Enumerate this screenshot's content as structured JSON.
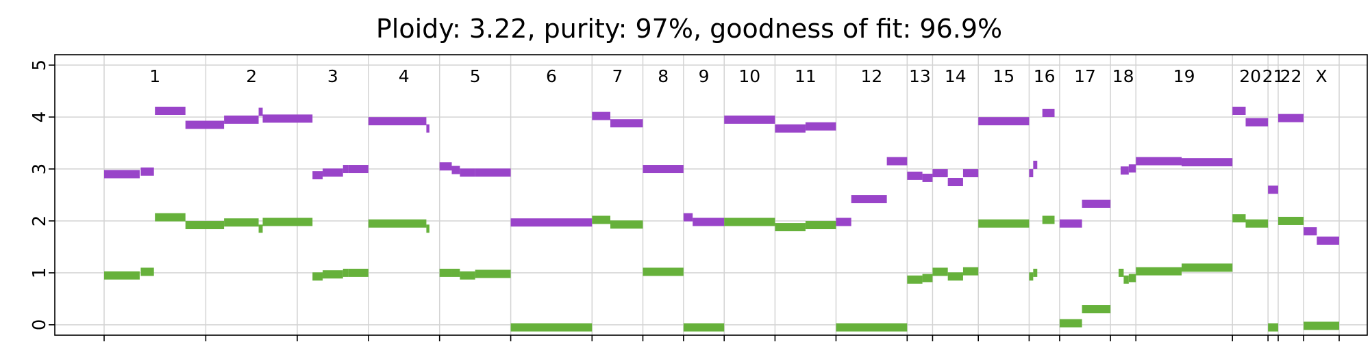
{
  "chart_data": {
    "type": "scatter",
    "title": "Ploidy: 3.22, purity: 97%, goodness of fit: 96.9%",
    "xlabel": "",
    "ylabel": "",
    "ylim": [
      -0.2,
      5.2
    ],
    "yticks": [
      0,
      1,
      2,
      3,
      4,
      5
    ],
    "grid": true,
    "colors": {
      "major": "#9944c9",
      "minor": "#66b13b"
    },
    "chromosomes": [
      {
        "name": "1",
        "start": 0,
        "end": 10
      },
      {
        "name": "2",
        "start": 10,
        "end": 19
      },
      {
        "name": "3",
        "start": 19,
        "end": 26
      },
      {
        "name": "4",
        "start": 26,
        "end": 33
      },
      {
        "name": "5",
        "start": 33,
        "end": 40
      },
      {
        "name": "6",
        "start": 40,
        "end": 48
      },
      {
        "name": "7",
        "start": 48,
        "end": 53
      },
      {
        "name": "8",
        "start": 53,
        "end": 57
      },
      {
        "name": "9",
        "start": 57,
        "end": 61
      },
      {
        "name": "10",
        "start": 61,
        "end": 66
      },
      {
        "name": "11",
        "start": 66,
        "end": 72
      },
      {
        "name": "12",
        "start": 72,
        "end": 79
      },
      {
        "name": "13",
        "start": 79,
        "end": 81.5
      },
      {
        "name": "14",
        "start": 81.5,
        "end": 86
      },
      {
        "name": "15",
        "start": 86,
        "end": 91
      },
      {
        "name": "16",
        "start": 91,
        "end": 94
      },
      {
        "name": "17",
        "start": 94,
        "end": 99
      },
      {
        "name": "18",
        "start": 99,
        "end": 101.5
      },
      {
        "name": "19",
        "start": 101.5,
        "end": 111
      },
      {
        "name": "20",
        "start": 111,
        "end": 114.5
      },
      {
        "name": "21",
        "start": 114.5,
        "end": 115.5
      },
      {
        "name": "22",
        "start": 115.5,
        "end": 118
      },
      {
        "name": "X",
        "start": 118,
        "end": 121.5
      }
    ],
    "series": [
      {
        "key": "major",
        "segments": [
          [
            0,
            3.5,
            2.9
          ],
          [
            3.6,
            4.9,
            2.95
          ],
          [
            5.0,
            8.0,
            4.12
          ],
          [
            8.0,
            11.8,
            3.85
          ],
          [
            11.8,
            15.2,
            3.95
          ],
          [
            15.2,
            15.6,
            4.1
          ],
          [
            15.6,
            20.5,
            3.97
          ],
          [
            20.5,
            21.5,
            2.88
          ],
          [
            21.5,
            23.5,
            2.93
          ],
          [
            23.5,
            24.0,
            3.0
          ],
          [
            24.0,
            26.0,
            3.0
          ],
          [
            26.0,
            31.7,
            3.92
          ],
          [
            31.7,
            32.0,
            3.78
          ],
          [
            33.0,
            34.2,
            3.05
          ],
          [
            34.2,
            35.0,
            2.98
          ],
          [
            35.0,
            36.5,
            2.93
          ],
          [
            36.5,
            40.0,
            2.93
          ],
          [
            40.0,
            48.0,
            1.97
          ],
          [
            48.0,
            49.8,
            4.02
          ],
          [
            49.8,
            53.0,
            3.88
          ],
          [
            53.0,
            57.0,
            3.0
          ],
          [
            57.0,
            57.9,
            2.07
          ],
          [
            57.9,
            61.0,
            1.98
          ],
          [
            61.0,
            66.0,
            3.95
          ],
          [
            66.0,
            69.0,
            3.78
          ],
          [
            69.0,
            72.0,
            3.82
          ],
          [
            72.0,
            73.5,
            1.98
          ],
          [
            73.5,
            77.0,
            2.42
          ],
          [
            77.0,
            79.0,
            3.15
          ],
          [
            79.0,
            80.5,
            2.87
          ],
          [
            80.5,
            81.5,
            2.83
          ],
          [
            81.5,
            83.0,
            2.92
          ],
          [
            83.0,
            84.5,
            2.75
          ],
          [
            84.5,
            86.0,
            2.92
          ],
          [
            86.0,
            91.0,
            3.92
          ],
          [
            91.0,
            91.4,
            2.92
          ],
          [
            91.4,
            91.8,
            3.08
          ],
          [
            92.3,
            93.5,
            4.08
          ],
          [
            94.0,
            96.2,
            1.95
          ],
          [
            96.2,
            99.0,
            2.33
          ],
          [
            100.0,
            100.8,
            2.97
          ],
          [
            100.8,
            101.5,
            3.01
          ],
          [
            101.5,
            106.0,
            3.15
          ],
          [
            106.0,
            111.0,
            3.13
          ],
          [
            111.0,
            112.3,
            4.12
          ],
          [
            112.3,
            114.5,
            3.9
          ],
          [
            114.5,
            115.5,
            2.6
          ],
          [
            115.5,
            118.0,
            3.98
          ],
          [
            118.0,
            119.3,
            1.8
          ],
          [
            119.3,
            121.5,
            1.62
          ]
        ]
      },
      {
        "key": "minor",
        "segments": [
          [
            0,
            3.5,
            0.95
          ],
          [
            3.6,
            4.9,
            1.02
          ],
          [
            5.0,
            8.0,
            2.07
          ],
          [
            8.0,
            11.8,
            1.92
          ],
          [
            11.8,
            15.2,
            1.97
          ],
          [
            15.2,
            15.6,
            1.85
          ],
          [
            15.6,
            20.5,
            1.98
          ],
          [
            20.5,
            21.5,
            0.93
          ],
          [
            21.5,
            23.5,
            0.97
          ],
          [
            23.5,
            24.0,
            1.0
          ],
          [
            24.0,
            26.0,
            1.0
          ],
          [
            26.0,
            31.7,
            1.95
          ],
          [
            31.7,
            32.0,
            1.85
          ],
          [
            33.0,
            34.2,
            1.0
          ],
          [
            34.2,
            35.0,
            1.0
          ],
          [
            35.0,
            36.5,
            0.95
          ],
          [
            36.5,
            40.0,
            0.98
          ],
          [
            40.0,
            48.0,
            -0.05
          ],
          [
            48.0,
            49.8,
            2.02
          ],
          [
            49.8,
            53.0,
            1.93
          ],
          [
            53.0,
            57.0,
            1.02
          ],
          [
            57.0,
            61.0,
            -0.05
          ],
          [
            61.0,
            66.0,
            1.98
          ],
          [
            66.0,
            69.0,
            1.88
          ],
          [
            69.0,
            72.0,
            1.92
          ],
          [
            72.0,
            79.0,
            -0.05
          ],
          [
            79.0,
            80.5,
            0.87
          ],
          [
            80.5,
            81.5,
            0.9
          ],
          [
            81.5,
            83.0,
            1.02
          ],
          [
            83.0,
            84.5,
            0.93
          ],
          [
            84.5,
            86.0,
            1.03
          ],
          [
            86.0,
            91.0,
            1.95
          ],
          [
            91.0,
            91.4,
            0.93
          ],
          [
            91.4,
            91.8,
            1.0
          ],
          [
            92.3,
            93.5,
            2.02
          ],
          [
            94.0,
            96.2,
            0.03
          ],
          [
            96.2,
            99.0,
            0.3
          ],
          [
            99.8,
            100.3,
            1.0
          ],
          [
            100.3,
            100.8,
            0.87
          ],
          [
            100.8,
            101.5,
            0.9
          ],
          [
            101.5,
            106.0,
            1.03
          ],
          [
            106.0,
            111.0,
            1.1
          ],
          [
            111.0,
            112.3,
            2.05
          ],
          [
            112.3,
            114.5,
            1.95
          ],
          [
            114.5,
            115.5,
            -0.05
          ],
          [
            115.5,
            118.0,
            2.0
          ],
          [
            118.0,
            121.5,
            -0.02
          ]
        ]
      }
    ]
  }
}
